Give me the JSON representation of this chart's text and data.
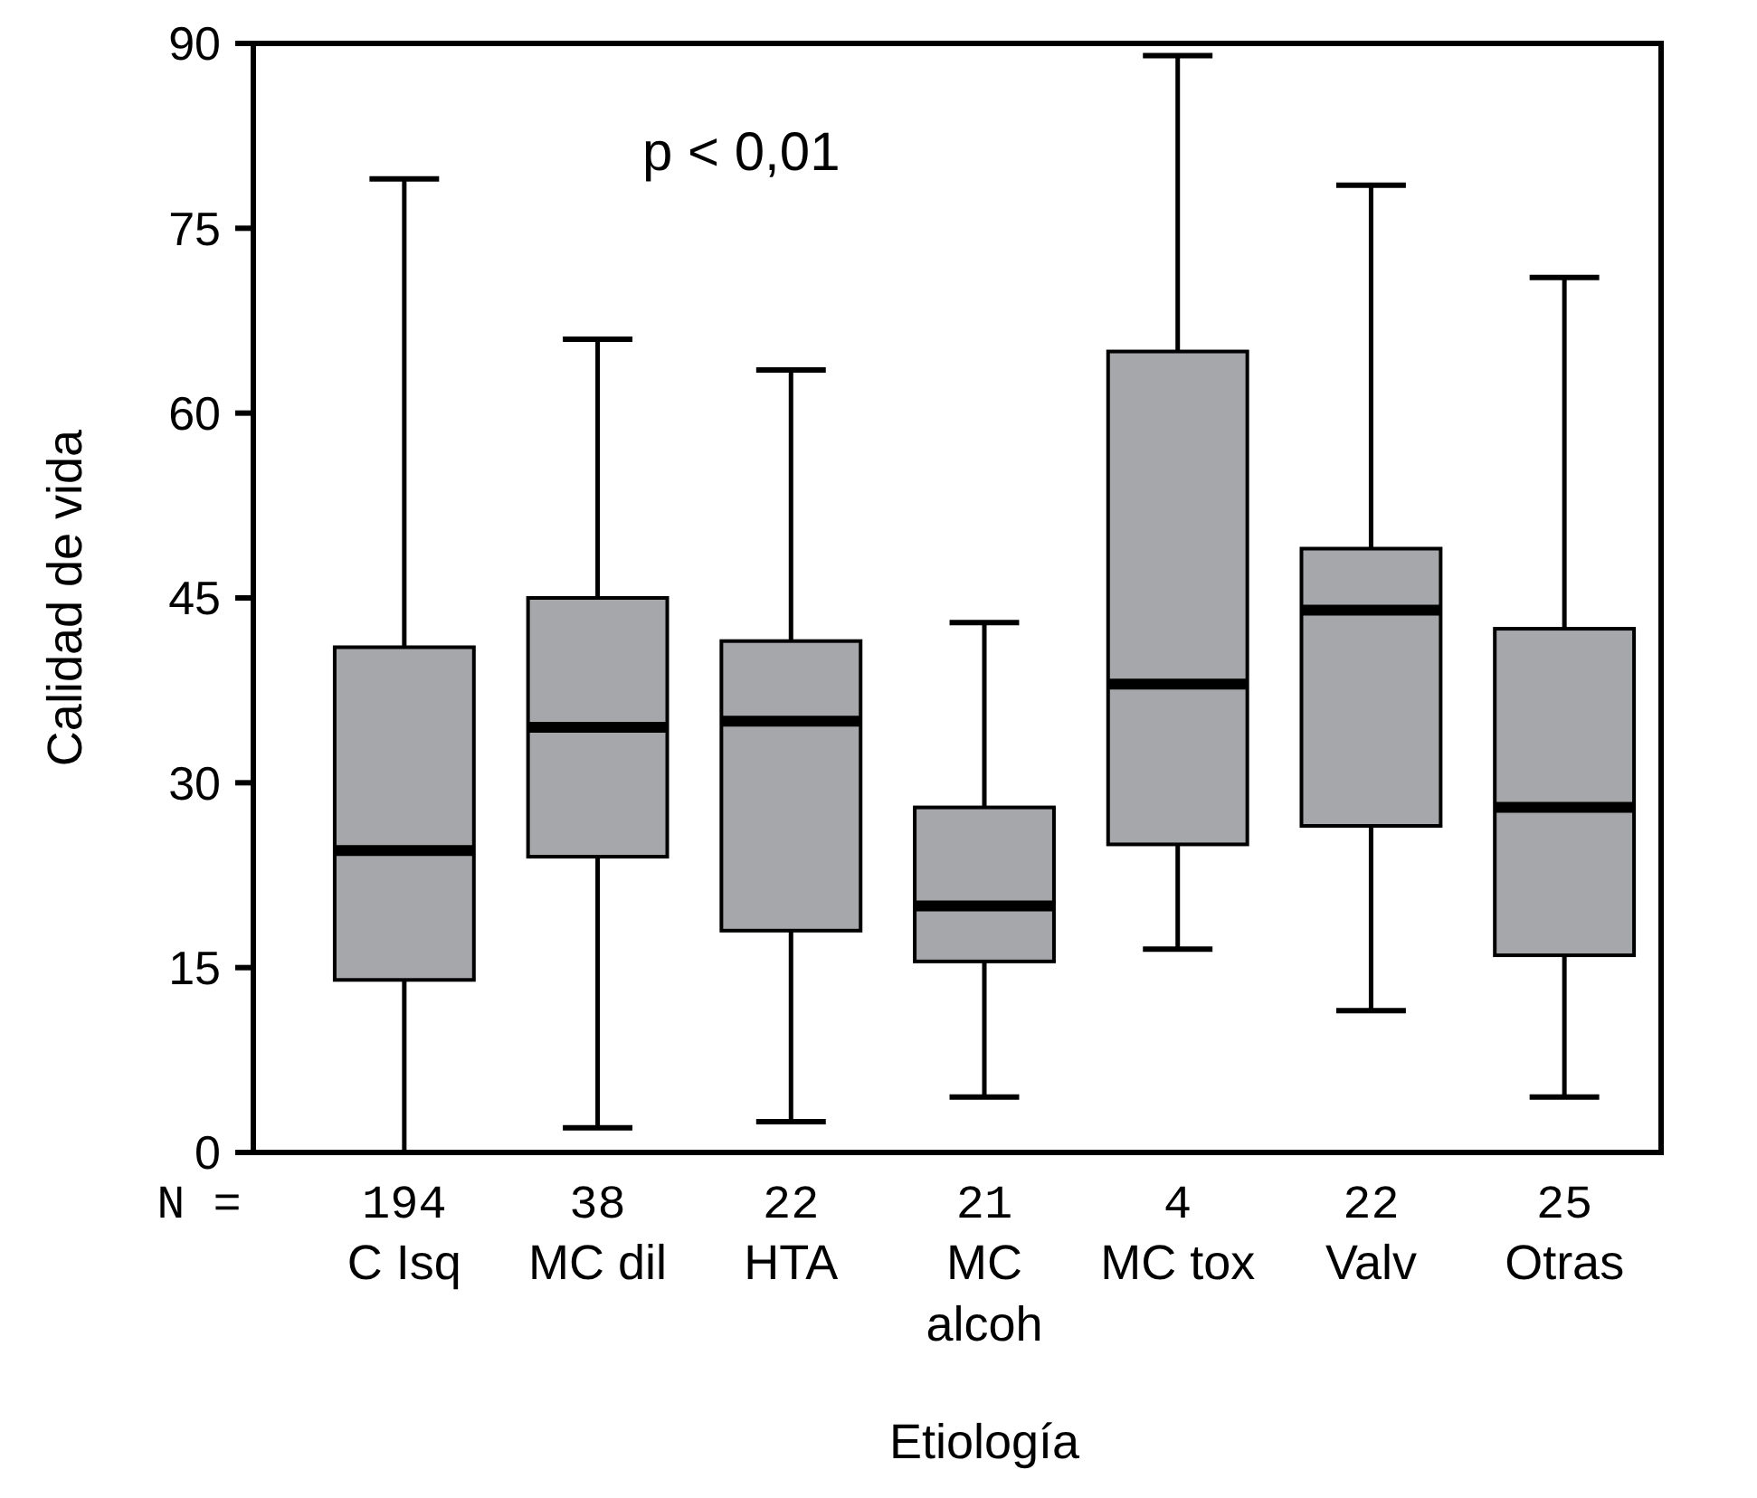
{
  "chart_data": {
    "type": "box",
    "xlabel": "Etiología",
    "ylabel": "Calidad de vida",
    "categories": [
      "C Isq",
      "MC dil",
      "HTA",
      "MC alcoh",
      "MC tox",
      "Valv",
      "Otras"
    ],
    "boxes": [
      {
        "low": 0,
        "q1": 14,
        "median": 24.5,
        "q3": 41,
        "high": 79
      },
      {
        "low": 2,
        "q1": 24,
        "median": 34.5,
        "q3": 45,
        "high": 66
      },
      {
        "low": 2.5,
        "q1": 18,
        "median": 35,
        "q3": 41.5,
        "high": 63.5
      },
      {
        "low": 4.5,
        "q1": 15.5,
        "median": 20,
        "q3": 28,
        "high": 43
      },
      {
        "low": 16.5,
        "q1": 25,
        "median": 38,
        "q3": 65,
        "high": 89
      },
      {
        "low": 11.5,
        "q1": 26.5,
        "median": 44,
        "q3": 49,
        "high": 78.5
      },
      {
        "low": 4.5,
        "q1": 16,
        "median": 28,
        "q3": 42.5,
        "high": 71
      }
    ],
    "color": "#a6a7aa",
    "ylim": [
      0,
      90
    ],
    "yticks": [
      0,
      15,
      30,
      45,
      60,
      75,
      90
    ],
    "grid": false,
    "annotations": [
      "p < 0,01",
      "N =",
      "194",
      "38",
      "22",
      "21",
      "4",
      "22",
      "25"
    ]
  }
}
